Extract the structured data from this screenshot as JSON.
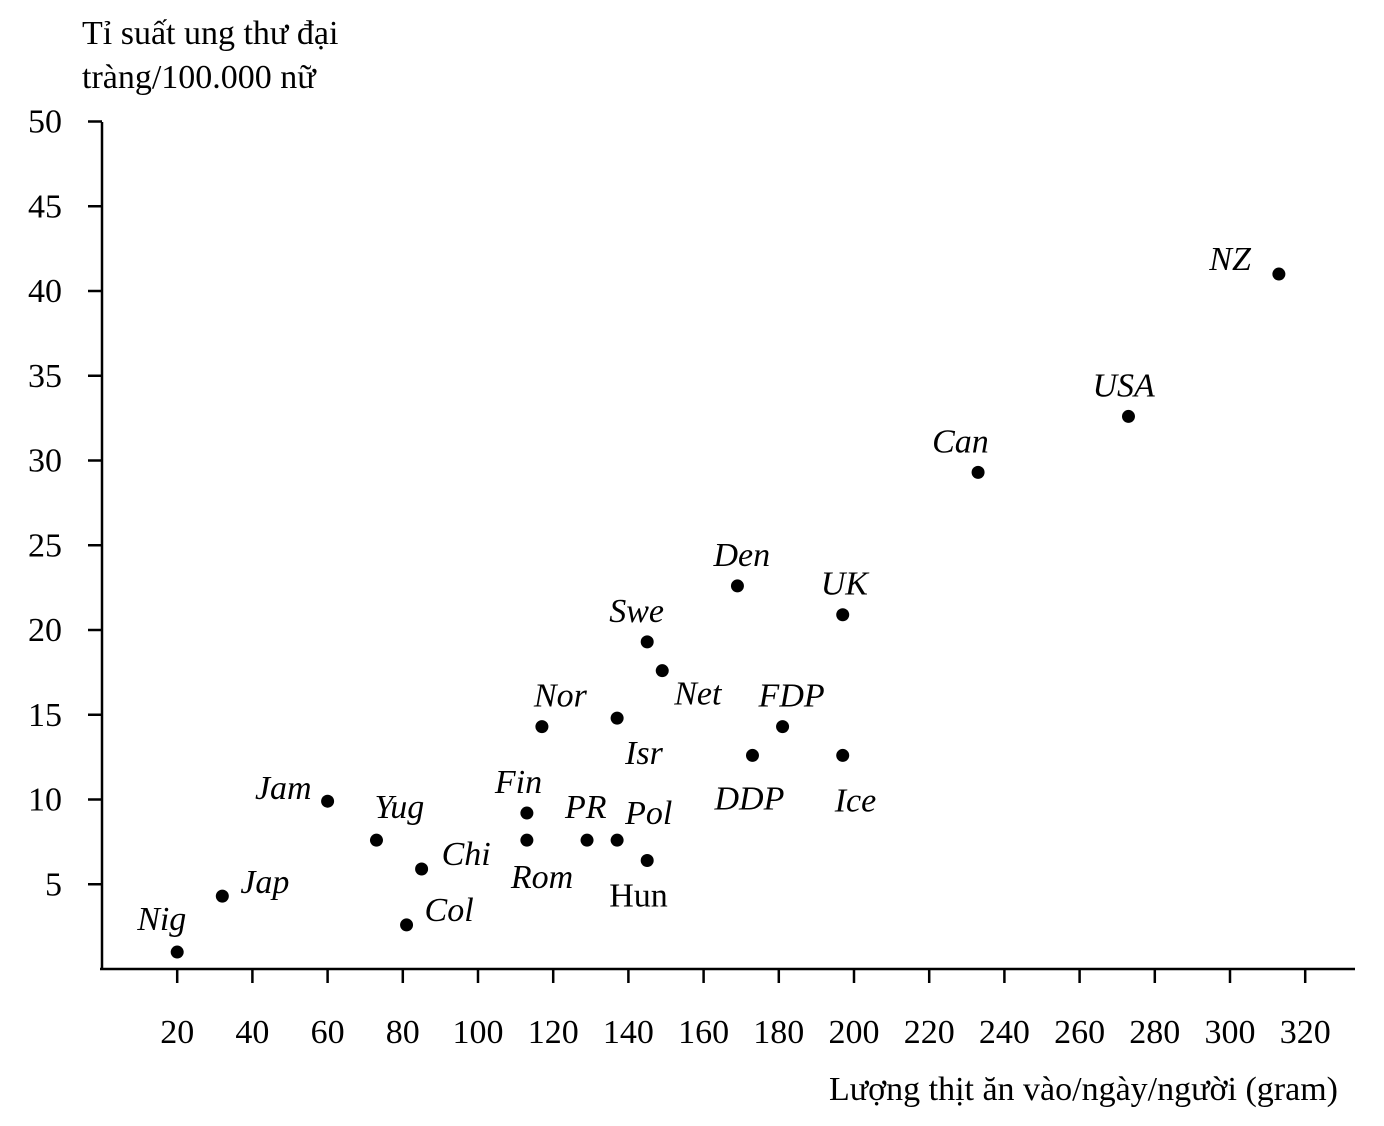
{
  "chart_data": {
    "type": "scatter",
    "ylabel_lines": [
      "Tỉ suất ung thư đại",
      "tràng/100.000 nữ"
    ],
    "xlabel": "Lượng thịt ăn vào/ngày/người  (gram)",
    "xlim": [
      0,
      330
    ],
    "ylim": [
      0,
      50
    ],
    "xticks": [
      20,
      40,
      60,
      80,
      100,
      120,
      140,
      160,
      180,
      200,
      220,
      240,
      260,
      280,
      300,
      320
    ],
    "yticks": [
      5,
      10,
      15,
      20,
      25,
      30,
      35,
      40,
      45,
      50
    ],
    "grid": false,
    "points": [
      {
        "label": "Nig",
        "x": 20,
        "y": 1,
        "italic": true
      },
      {
        "label": "Jap",
        "x": 32,
        "y": 4.3,
        "italic": true
      },
      {
        "label": "Jam",
        "x": 60,
        "y": 9.9,
        "italic": true
      },
      {
        "label": "Yug",
        "x": 73,
        "y": 7.6,
        "italic": true
      },
      {
        "label": "Col",
        "x": 81,
        "y": 2.6,
        "italic": true
      },
      {
        "label": "Chi",
        "x": 85,
        "y": 5.9,
        "italic": true
      },
      {
        "label": "Fin",
        "x": 113,
        "y": 9.2,
        "italic": true
      },
      {
        "label": "Rom",
        "x": 113,
        "y": 7.6,
        "italic": true
      },
      {
        "label": "Nor",
        "x": 117,
        "y": 14.3,
        "italic": true
      },
      {
        "label": "PR",
        "x": 129,
        "y": 7.6,
        "italic": true
      },
      {
        "label": "Pol",
        "x": 137,
        "y": 7.6,
        "italic": true
      },
      {
        "label": "Isr",
        "x": 137,
        "y": 14.8,
        "italic": true
      },
      {
        "label": "Hun",
        "x": 145,
        "y": 6.4,
        "italic": false
      },
      {
        "label": "Swe",
        "x": 145,
        "y": 19.3,
        "italic": true
      },
      {
        "label": "Net",
        "x": 149,
        "y": 17.6,
        "italic": true
      },
      {
        "label": "Den",
        "x": 169,
        "y": 22.6,
        "italic": true
      },
      {
        "label": "DDP",
        "x": 173,
        "y": 12.6,
        "italic": true
      },
      {
        "label": "FDP",
        "x": 181,
        "y": 14.3,
        "italic": true
      },
      {
        "label": "UK",
        "x": 197,
        "y": 20.9,
        "italic": true
      },
      {
        "label": "Ice",
        "x": 197,
        "y": 12.6,
        "italic": true
      },
      {
        "label": "Can",
        "x": 233,
        "y": 29.3,
        "italic": true
      },
      {
        "label": "USA",
        "x": 273,
        "y": 32.6,
        "italic": true
      },
      {
        "label": "NZ",
        "x": 313,
        "y": 41,
        "italic": true
      }
    ]
  }
}
